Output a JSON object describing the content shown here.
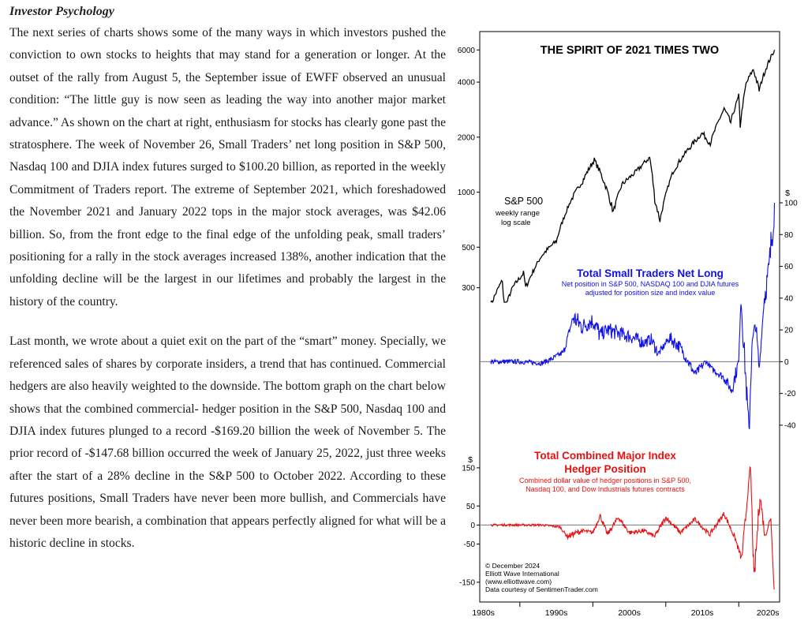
{
  "section_title": "Investor Psychology",
  "paragraphs": [
    "The next series of charts shows some of the many ways in which investors pushed the conviction to own stocks to heights that may stand for a generation or longer. At the outset of the rally from August 5, the September issue of EWFF observed an unusual condition: “The little guy is now seen as leading the way into another major market advance.” As shown on the chart at right, enthusiasm for stocks has clearly gone past the stratosphere. The week of November 26, Small Traders’ net long position in S&P 500, Nasdaq 100 and DJIA index futures surged to $100.20 billion, as reported in the weekly Commitment of Traders report. The extreme of September 2021, which foreshadowed the November 2021 and January 2022 tops in the major stock averages, was $42.06 billion. So, from the front edge to the final edge of the unfolding peak, small traders’ positioning for a rally in the stock averages increased 138%, another indication that the unfolding decline will be the largest in our lifetimes and probably the largest in the history of the country.",
    "Last month, we wrote about a quiet exit on the part of the “smart” money. Specially, we referenced sales of shares by corporate insiders, a trend that has continued. Commercial hedgers are also heavily weighted to the downside. The bottom graph on the chart below shows that the combined commercial- hedger position in the S&P 500, Nasdaq 100 and DJIA index futures plunged to a record -$169.20 billion the week of November 5. The prior record of -$147.68 billion occurred the week of January 25, 2022, just three weeks after the start of a 28% decline in the S&P 500 to October 2022. According to these futures positions, Small Traders have never been more bullish, and Commercials have never been more bearish, a combination that appears perfectly aligned for what will be a historic decline in stocks."
  ],
  "chart_data": [
    {
      "type": "line",
      "title": "THE SPIRIT OF 2021 TIMES TWO",
      "series_label": "S&P 500",
      "series_sublabel_1": "weekly range",
      "series_sublabel_2": "log scale",
      "yscale": "log",
      "ylim": [
        250,
        6200
      ],
      "yticks": [
        6000,
        4000,
        2000,
        1000,
        500,
        300
      ],
      "x": [
        1986,
        1987.6,
        1987.85,
        1989,
        1990.5,
        1990.8,
        1993,
        1995,
        1997,
        1998.6,
        1999.5,
        2000.2,
        2001.5,
        2002.8,
        2004,
        2006,
        2007.8,
        2008.5,
        2009.2,
        2011,
        2013,
        2015,
        2016.1,
        2018,
        2018.9,
        2020,
        2020.2,
        2021,
        2022,
        2022.8,
        2023.5,
        2024.9
      ],
      "y": [
        240,
        330,
        225,
        300,
        360,
        300,
        450,
        540,
        900,
        1150,
        1350,
        1500,
        1150,
        780,
        1100,
        1300,
        1550,
        900,
        700,
        1300,
        1700,
        2100,
        1850,
        2850,
        2400,
        3350,
        2300,
        3900,
        4700,
        3600,
        4500,
        6000
      ],
      "color": "#000000"
    },
    {
      "type": "line",
      "title": "Total Small Traders Net Long",
      "subtitle_1": "Net position in S&P 500, NASDAQ 100 and DJIA futures",
      "subtitle_2": "adjusted for position size and index value",
      "unit": "$",
      "ylim": [
        -47,
        102
      ],
      "yticks": [
        100,
        80,
        60,
        40,
        20,
        0,
        -20,
        -40
      ],
      "x": [
        1986,
        1990,
        1993,
        1994.5,
        1996,
        1997.3,
        1998.5,
        2000,
        2001,
        2002,
        2003.5,
        2005,
        2007,
        2008,
        2009,
        2010.5,
        2012,
        2014,
        2015.5,
        2016.5,
        2018,
        2019,
        2020,
        2020.3,
        2021.4,
        2021.8,
        2022.3,
        2022.8,
        2023.5,
        2024.2,
        2024.9
      ],
      "y": [
        0,
        0,
        -1,
        2,
        6,
        28,
        22,
        26,
        17,
        20,
        18,
        16,
        12,
        14,
        5,
        15,
        9,
        -8,
        0,
        -5,
        -10,
        -18,
        0,
        42,
        -45,
        10,
        25,
        -5,
        40,
        60,
        100
      ],
      "color": "#1010e8"
    },
    {
      "type": "line",
      "title_line_1": "Total Combined Major Index",
      "title_line_2": "Hedger Position",
      "subtitle_1": "Combined dollar value of hedger positions in S&P 500,",
      "subtitle_2": "Nasdaq 100, and Dow Industrials futures contracts",
      "unit": "$",
      "ylim": [
        -175,
        185
      ],
      "yticks": [
        150,
        50,
        0,
        -50,
        -150
      ],
      "x": [
        1986,
        1990,
        1993,
        1995.5,
        1996.5,
        1998.5,
        2000,
        2001,
        2002,
        2003.5,
        2005,
        2007,
        2008.5,
        2010,
        2012,
        2014,
        2016,
        2018,
        2019.5,
        2020.4,
        2021,
        2021.6,
        2022.1,
        2022.9,
        2023.6,
        2024.4,
        2024.85
      ],
      "y": [
        0,
        0,
        0,
        -5,
        -30,
        -15,
        -20,
        25,
        -25,
        20,
        -20,
        -15,
        -30,
        20,
        -20,
        15,
        -25,
        30,
        -35,
        -90,
        30,
        160,
        -148,
        80,
        -30,
        20,
        -169
      ],
      "color": "#e81010"
    }
  ],
  "x_axis": {
    "ticks": [
      "1980s",
      "1990s",
      "2000s",
      "2010s",
      "2020s"
    ]
  },
  "credits": [
    "© December 2024",
    "Elliott Wave International",
    "(www.elliottwave.com)",
    "Data courtesy of SentimenTrader.com"
  ]
}
